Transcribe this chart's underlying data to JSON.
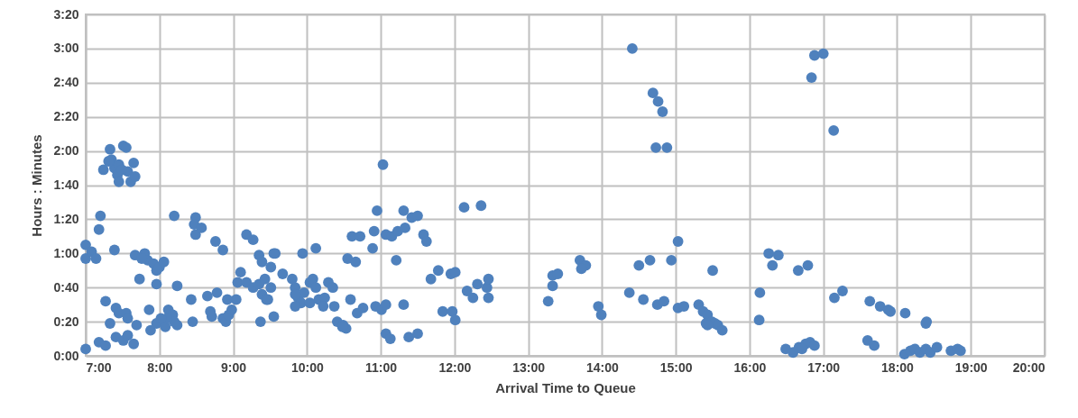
{
  "chart_data": {
    "type": "scatter",
    "xlabel": "Arrival Time to Queue",
    "ylabel": "Hours : Minutes",
    "xlim": [
      7,
      20
    ],
    "ylim": [
      0,
      200
    ],
    "xticks": [
      {
        "value": 7,
        "label": "7:00"
      },
      {
        "value": 8,
        "label": "8:00"
      },
      {
        "value": 9,
        "label": "9:00"
      },
      {
        "value": 10,
        "label": "10:00"
      },
      {
        "value": 11,
        "label": "11:00"
      },
      {
        "value": 12,
        "label": "12:00"
      },
      {
        "value": 13,
        "label": "13:00"
      },
      {
        "value": 14,
        "label": "14:00"
      },
      {
        "value": 15,
        "label": "15:00"
      },
      {
        "value": 16,
        "label": "16:00"
      },
      {
        "value": 17,
        "label": "17:00"
      },
      {
        "value": 18,
        "label": "18:00"
      },
      {
        "value": 19,
        "label": "19:00"
      },
      {
        "value": 20,
        "label": "20:00"
      }
    ],
    "yticks": [
      {
        "value": 0,
        "label": "0:00"
      },
      {
        "value": 20,
        "label": "0:20"
      },
      {
        "value": 40,
        "label": "0:40"
      },
      {
        "value": 60,
        "label": "1:00"
      },
      {
        "value": 80,
        "label": "1:20"
      },
      {
        "value": 100,
        "label": "1:40"
      },
      {
        "value": 120,
        "label": "2:00"
      },
      {
        "value": 140,
        "label": "2:20"
      },
      {
        "value": 160,
        "label": "2:40"
      },
      {
        "value": 180,
        "label": "3:00"
      },
      {
        "value": 200,
        "label": "3:20"
      }
    ],
    "grid": true,
    "marker": "circle",
    "series": [
      {
        "color": "#4f81bd",
        "x": [
          7.0,
          7.18,
          7.27,
          7.27,
          7.33,
          7.41,
          7.45,
          7.55,
          7.57,
          7.41,
          7.51,
          7.57,
          7.65,
          7.69,
          7.86,
          7.88,
          7.96,
          8.08,
          8.12,
          8.18,
          8.24,
          8.2,
          8.1,
          8.02,
          8.43,
          8.45,
          8.24,
          8.65,
          8.71,
          8.69,
          8.78,
          8.86,
          8.9,
          8.94,
          8.98,
          8.92,
          9.04,
          9.06,
          9.1,
          9.18,
          9.27,
          9.35,
          9.43,
          9.39,
          9.45,
          9.51,
          9.37,
          9.55,
          9.47,
          9.18,
          9.27,
          9.35,
          9.39,
          9.55,
          9.51,
          9.67,
          9.8,
          9.84,
          9.88,
          9.92,
          9.84,
          9.96,
          10.04,
          10.08,
          10.12,
          10.16,
          10.24,
          10.29,
          10.35,
          10.37,
          10.22,
          10.41,
          10.49,
          10.53,
          10.04,
          9.84,
          9.94,
          10.12,
          9.57,
          8.2,
          8.49,
          8.47,
          8.49,
          8.57,
          8.76,
          8.86,
          7.67,
          7.8,
          7.84,
          7.76,
          7.92,
          7.96,
          8.0,
          8.06,
          7.73,
          7.96,
          7.39,
          7.0,
          7.0,
          7.08,
          7.14,
          7.2,
          7.18,
          7.24,
          7.33,
          7.35,
          7.39,
          7.43,
          7.45,
          7.51,
          7.55,
          7.57,
          7.61,
          7.65,
          7.67,
          7.45,
          7.31,
          7.49,
          10.61,
          10.55,
          10.59,
          10.48,
          10.66,
          10.72,
          10.89,
          10.91,
          10.95,
          11.03,
          11.07,
          11.15,
          11.23,
          11.33,
          11.31,
          11.42,
          11.5,
          11.21,
          11.58,
          11.62,
          10.68,
          10.76,
          10.93,
          11.01,
          11.07,
          11.31,
          11.07,
          11.13,
          11.38,
          11.5,
          11.68,
          11.78,
          11.95,
          12.01,
          11.84,
          11.97,
          12.01,
          12.13,
          12.36,
          12.17,
          12.25,
          12.31,
          12.44,
          12.46,
          12.46,
          13.33,
          13.4,
          13.33,
          13.27,
          13.7,
          13.78,
          13.72,
          13.95,
          13.99,
          14.41,
          14.69,
          14.76,
          14.82,
          14.73,
          14.88,
          16.88,
          17.0,
          16.84,
          17.14,
          15.03,
          14.5,
          14.65,
          14.94,
          15.5,
          14.37,
          14.56,
          14.75,
          14.84,
          15.03,
          15.11,
          15.31,
          15.37,
          15.43,
          15.41,
          15.49,
          15.53,
          15.57,
          15.63,
          15.43,
          16.14,
          16.13,
          16.26,
          16.39,
          16.31,
          16.66,
          16.79,
          17.15,
          17.26,
          17.63,
          17.77,
          17.88,
          17.91,
          18.11,
          18.4,
          18.39,
          16.49,
          16.59,
          16.67,
          16.76,
          16.82,
          16.88,
          16.71,
          17.6,
          17.69,
          18.1,
          18.18,
          18.24,
          18.31,
          18.39,
          18.45,
          18.54,
          18.73,
          18.82,
          18.86
        ],
        "values": [
          4,
          8,
          6,
          32,
          19,
          28,
          25,
          25,
          22,
          11,
          9,
          12,
          7,
          18,
          27,
          15,
          19,
          17,
          27,
          24,
          18,
          20,
          22,
          22,
          33,
          20,
          41,
          35,
          23,
          26,
          37,
          22,
          20,
          24,
          27,
          33,
          33,
          43,
          49,
          43,
          40,
          42,
          45,
          36,
          33,
          40,
          20,
          23,
          33,
          71,
          68,
          59,
          55,
          60,
          52,
          48,
          45,
          40,
          34,
          31,
          29,
          37,
          43,
          45,
          40,
          33,
          34,
          43,
          40,
          29,
          29,
          20,
          18,
          16,
          31,
          36,
          60,
          63,
          60,
          82,
          81,
          77,
          71,
          75,
          67,
          62,
          59,
          60,
          56,
          57,
          54,
          50,
          52,
          55,
          45,
          42,
          62,
          65,
          57,
          61,
          57,
          82,
          74,
          109,
          121,
          115,
          110,
          106,
          102,
          123,
          122,
          108,
          102,
          113,
          105,
          112,
          114,
          109,
          70,
          57,
          33,
          17,
          55,
          70,
          63,
          73,
          85,
          112,
          71,
          70,
          73,
          75,
          85,
          81,
          82,
          56,
          71,
          67,
          25,
          28,
          29,
          27,
          30,
          30,
          13,
          10,
          11,
          13,
          45,
          50,
          48,
          49,
          26,
          26,
          21,
          87,
          88,
          38,
          34,
          42,
          40,
          45,
          34,
          47,
          48,
          41,
          32,
          56,
          53,
          51,
          29,
          24,
          180,
          154,
          149,
          143,
          122,
          122,
          176,
          177,
          163,
          132,
          67,
          53,
          56,
          56,
          50,
          37,
          33,
          30,
          32,
          28,
          29,
          30,
          26,
          24,
          19,
          20,
          19,
          18,
          15,
          18,
          37,
          21,
          60,
          59,
          53,
          50,
          53,
          34,
          38,
          32,
          29,
          27,
          26,
          25,
          20,
          19,
          4,
          2,
          5,
          7,
          8,
          6,
          4,
          9,
          6,
          1,
          3,
          4,
          2,
          4,
          2,
          5,
          3,
          4,
          3
        ]
      }
    ]
  }
}
